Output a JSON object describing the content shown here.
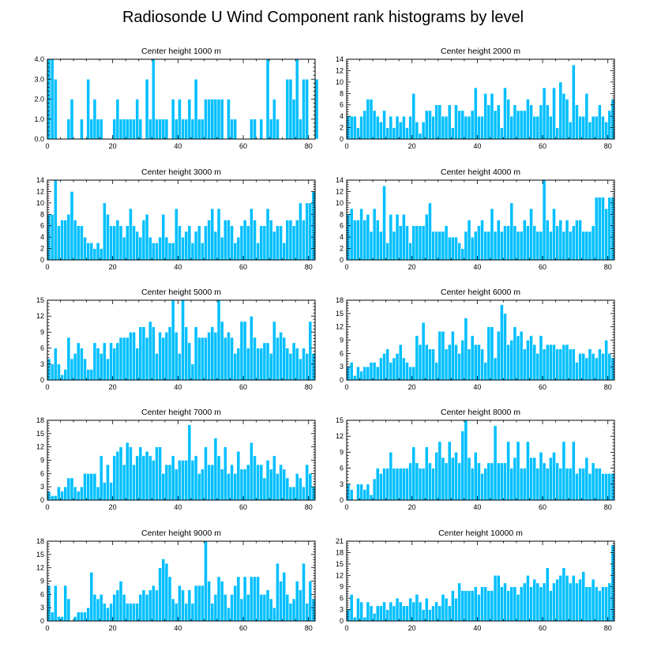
{
  "title": "Radiosonde U Wind Component rank histograms by level",
  "chart_data": [
    {
      "type": "bar",
      "title": "Center height 1000 m",
      "xlim": [
        0,
        82
      ],
      "ylim": [
        0,
        4
      ],
      "xticks": [
        0,
        20,
        40,
        60,
        80
      ],
      "yticks": [
        0,
        1,
        2,
        3,
        4
      ],
      "yticklabels": [
        "0.0",
        "1.0",
        "2.0",
        "3.0",
        "4.0"
      ],
      "values": [
        4,
        4,
        3,
        0,
        0,
        0,
        1,
        2,
        0,
        0,
        1,
        0,
        3,
        1,
        2,
        1,
        1,
        0,
        0,
        0,
        1,
        2,
        1,
        1,
        1,
        1,
        1,
        2,
        1,
        0,
        3,
        1,
        4,
        1,
        1,
        1,
        1,
        0,
        2,
        1,
        2,
        1,
        1,
        2,
        1,
        3,
        1,
        1,
        2,
        2,
        2,
        2,
        2,
        2,
        0,
        2,
        1,
        1,
        0,
        0,
        0,
        0,
        1,
        1,
        0,
        1,
        0,
        4,
        1,
        2,
        1,
        0,
        0,
        3,
        3,
        2,
        4,
        1,
        3,
        3,
        0,
        0,
        3
      ]
    },
    {
      "type": "bar",
      "title": "Center height 2000 m",
      "xlim": [
        0,
        82
      ],
      "ylim": [
        0,
        14
      ],
      "xticks": [
        0,
        20,
        40,
        60,
        80
      ],
      "yticks": [
        0,
        2,
        4,
        6,
        8,
        10,
        12,
        14
      ],
      "yticklabels": [
        "0",
        "2",
        "4",
        "6",
        "8",
        "10",
        "12",
        "14"
      ],
      "values": [
        4,
        4,
        4,
        2,
        4,
        5,
        7,
        7,
        5,
        4,
        3,
        5,
        2,
        4,
        2,
        4,
        3,
        4,
        2,
        4,
        8,
        3,
        1,
        3,
        5,
        5,
        4,
        6,
        6,
        4,
        4,
        6,
        2,
        6,
        5,
        5,
        4,
        4,
        5,
        9,
        4,
        4,
        8,
        6,
        8,
        5,
        6,
        2,
        9,
        7,
        4,
        6,
        5,
        5,
        5,
        7,
        6,
        4,
        4,
        6,
        9,
        6,
        4,
        9,
        2,
        10,
        8,
        7,
        3,
        13,
        6,
        4,
        4,
        8,
        3,
        4,
        4,
        6,
        4,
        3,
        5,
        7
      ]
    },
    {
      "type": "bar",
      "title": "Center height 3000 m",
      "xlim": [
        0,
        82
      ],
      "ylim": [
        0,
        14
      ],
      "xticks": [
        0,
        20,
        40,
        60,
        80
      ],
      "yticks": [
        0,
        2,
        4,
        6,
        8,
        10,
        12,
        14
      ],
      "yticklabels": [
        "0",
        "2",
        "4",
        "6",
        "8",
        "10",
        "12",
        "14"
      ],
      "values": [
        8,
        8,
        14,
        6,
        7,
        7,
        8,
        12,
        7,
        6,
        6,
        4,
        3,
        3,
        2,
        3,
        2,
        10,
        8,
        6,
        6,
        7,
        6,
        4,
        6,
        9,
        6,
        5,
        4,
        7,
        8,
        4,
        3,
        3,
        4,
        8,
        4,
        3,
        3,
        9,
        6,
        4,
        5,
        6,
        3,
        5,
        6,
        3,
        6,
        7,
        9,
        5,
        9,
        4,
        7,
        7,
        6,
        3,
        4,
        6,
        7,
        6,
        9,
        7,
        3,
        6,
        6,
        9,
        7,
        5,
        6,
        6,
        3,
        7,
        7,
        6,
        7,
        10,
        7,
        10,
        10,
        12
      ]
    },
    {
      "type": "bar",
      "title": "Center height 4000 m",
      "xlim": [
        0,
        82
      ],
      "ylim": [
        0,
        14
      ],
      "xticks": [
        0,
        20,
        40,
        60,
        80
      ],
      "yticks": [
        0,
        2,
        4,
        6,
        8,
        10,
        12,
        14
      ],
      "yticklabels": [
        "0",
        "2",
        "4",
        "6",
        "8",
        "10",
        "12",
        "14"
      ],
      "values": [
        8,
        9,
        7,
        7,
        9,
        7,
        8,
        5,
        9,
        7,
        5,
        13,
        3,
        8,
        5,
        8,
        6,
        8,
        6,
        3,
        6,
        6,
        6,
        6,
        8,
        10,
        5,
        5,
        5,
        5,
        6,
        4,
        4,
        4,
        3,
        2,
        5,
        7,
        4,
        5,
        6,
        7,
        5,
        5,
        9,
        5,
        7,
        5,
        6,
        6,
        10,
        6,
        5,
        5,
        7,
        6,
        9,
        6,
        5,
        5,
        14,
        7,
        5,
        9,
        6,
        7,
        5,
        7,
        5,
        6,
        7,
        7,
        5,
        5,
        5,
        6,
        11,
        11,
        11,
        9,
        11,
        11
      ]
    },
    {
      "type": "bar",
      "title": "Center height 5000 m",
      "xlim": [
        0,
        82
      ],
      "ylim": [
        0,
        15
      ],
      "xticks": [
        0,
        20,
        40,
        60,
        80
      ],
      "yticks": [
        0,
        3,
        6,
        9,
        12,
        15
      ],
      "yticklabels": [
        "0",
        "3",
        "6",
        "9",
        "12",
        "15"
      ],
      "values": [
        4,
        3,
        6,
        3,
        1,
        2,
        8,
        4,
        5,
        7,
        6,
        4,
        2,
        2,
        7,
        6,
        5,
        7,
        4,
        7,
        6,
        7,
        8,
        8,
        8,
        9,
        9,
        6,
        10,
        10,
        8,
        11,
        10,
        5,
        9,
        8,
        9,
        10,
        15,
        9,
        5,
        15,
        10,
        7,
        3,
        10,
        8,
        8,
        8,
        9,
        10,
        9,
        15,
        11,
        8,
        9,
        8,
        5,
        6,
        11,
        11,
        6,
        12,
        8,
        6,
        6,
        7,
        7,
        5,
        11,
        8,
        9,
        8,
        6,
        5,
        7,
        6,
        4,
        6,
        5,
        11,
        5
      ]
    },
    {
      "type": "bar",
      "title": "Center height 6000 m",
      "xlim": [
        0,
        82
      ],
      "ylim": [
        0,
        18
      ],
      "xticks": [
        0,
        20,
        40,
        60,
        80
      ],
      "yticks": [
        0,
        3,
        6,
        9,
        12,
        15,
        18
      ],
      "yticklabels": [
        "0",
        "3",
        "6",
        "9",
        "12",
        "15",
        "18"
      ],
      "values": [
        3,
        4,
        1,
        3,
        2,
        3,
        3,
        4,
        4,
        3,
        5,
        6,
        7,
        4,
        5,
        6,
        8,
        5,
        4,
        3,
        3,
        10,
        8,
        13,
        8,
        7,
        7,
        4,
        11,
        11,
        7,
        8,
        11,
        8,
        6,
        9,
        14,
        7,
        10,
        8,
        8,
        7,
        4,
        12,
        12,
        5,
        11,
        17,
        15,
        8,
        9,
        12,
        10,
        11,
        7,
        9,
        10,
        8,
        6,
        10,
        7,
        8,
        8,
        8,
        7,
        7,
        8,
        8,
        7,
        7,
        4,
        6,
        6,
        5,
        7,
        6,
        5,
        7,
        6,
        9,
        6,
        5
      ]
    },
    {
      "type": "bar",
      "title": "Center height 7000 m",
      "xlim": [
        0,
        82
      ],
      "ylim": [
        0,
        18
      ],
      "xticks": [
        0,
        20,
        40,
        60,
        80
      ],
      "yticks": [
        0,
        3,
        6,
        9,
        12,
        15,
        18
      ],
      "yticklabels": [
        "0",
        "3",
        "6",
        "9",
        "12",
        "15",
        "18"
      ],
      "values": [
        2,
        1,
        1,
        3,
        2,
        3,
        5,
        5,
        3,
        2,
        3,
        6,
        6,
        6,
        6,
        3,
        10,
        4,
        8,
        4,
        10,
        11,
        12,
        8,
        13,
        12,
        8,
        10,
        12,
        10,
        11,
        10,
        9,
        12,
        12,
        6,
        8,
        8,
        10,
        7,
        9,
        9,
        9,
        17,
        9,
        10,
        6,
        7,
        12,
        8,
        8,
        14,
        10,
        7,
        12,
        6,
        8,
        6,
        11,
        7,
        7,
        8,
        13,
        10,
        8,
        8,
        5,
        9,
        7,
        10,
        6,
        8,
        7,
        5,
        3,
        3,
        6,
        5,
        3,
        8,
        6,
        3
      ]
    },
    {
      "type": "bar",
      "title": "Center height 8000 m",
      "xlim": [
        0,
        82
      ],
      "ylim": [
        0,
        15
      ],
      "xticks": [
        0,
        20,
        40,
        60,
        80
      ],
      "yticks": [
        0,
        3,
        6,
        9,
        12,
        15
      ],
      "yticklabels": [
        "0",
        "3",
        "6",
        "9",
        "12",
        "15"
      ],
      "values": [
        3,
        2,
        0,
        3,
        3,
        2,
        3,
        1,
        4,
        6,
        5,
        6,
        6,
        9,
        6,
        6,
        6,
        6,
        6,
        7,
        10,
        7,
        6,
        6,
        10,
        7,
        6,
        9,
        11,
        8,
        7,
        11,
        8,
        9,
        7,
        13,
        15,
        8,
        6,
        9,
        7,
        5,
        6,
        7,
        7,
        14,
        7,
        7,
        7,
        11,
        6,
        8,
        11,
        6,
        6,
        11,
        8,
        8,
        6,
        9,
        7,
        6,
        8,
        9,
        7,
        6,
        11,
        6,
        6,
        11,
        5,
        6,
        6,
        8,
        5,
        7,
        6,
        6,
        5,
        5,
        5,
        5
      ]
    },
    {
      "type": "bar",
      "title": "Center height 9000 m",
      "xlim": [
        0,
        82
      ],
      "ylim": [
        0,
        18
      ],
      "xticks": [
        0,
        20,
        40,
        60,
        80
      ],
      "yticks": [
        0,
        3,
        6,
        9,
        12,
        15,
        18
      ],
      "yticklabels": [
        "0",
        "3",
        "6",
        "9",
        "12",
        "15",
        "18"
      ],
      "values": [
        8,
        2,
        8,
        1,
        1,
        8,
        5,
        0,
        1,
        2,
        2,
        2,
        3,
        11,
        6,
        5,
        6,
        4,
        3,
        4,
        6,
        7,
        9,
        6,
        4,
        4,
        4,
        4,
        6,
        7,
        6,
        7,
        8,
        7,
        12,
        14,
        13,
        10,
        5,
        4,
        8,
        7,
        4,
        7,
        4,
        8,
        8,
        8,
        18,
        9,
        4,
        6,
        10,
        9,
        6,
        3,
        6,
        8,
        10,
        5,
        10,
        6,
        10,
        10,
        10,
        6,
        6,
        7,
        5,
        3,
        13,
        9,
        11,
        6,
        4,
        5,
        9,
        7,
        13,
        4,
        9,
        5
      ]
    },
    {
      "type": "bar",
      "title": "Center height 10000 m",
      "xlim": [
        0,
        82
      ],
      "ylim": [
        0,
        21
      ],
      "xticks": [
        0,
        20,
        40,
        60,
        80
      ],
      "yticks": [
        0,
        3,
        6,
        9,
        12,
        15,
        18,
        21
      ],
      "yticklabels": [
        "0",
        "3",
        "6",
        "9",
        "12",
        "15",
        "18",
        "21"
      ],
      "values": [
        3,
        7,
        1,
        6,
        5,
        1,
        5,
        4,
        2,
        4,
        4,
        5,
        3,
        5,
        4,
        6,
        5,
        4,
        4,
        6,
        5,
        7,
        5,
        3,
        6,
        3,
        4,
        5,
        4,
        7,
        6,
        4,
        8,
        6,
        10,
        8,
        8,
        8,
        8,
        9,
        7,
        9,
        9,
        8,
        8,
        12,
        12,
        9,
        10,
        8,
        9,
        9,
        7,
        9,
        10,
        12,
        9,
        11,
        10,
        9,
        10,
        14,
        8,
        10,
        11,
        12,
        14,
        12,
        10,
        12,
        10,
        11,
        13,
        9,
        9,
        11,
        9,
        8,
        9,
        9,
        10,
        20
      ]
    }
  ]
}
